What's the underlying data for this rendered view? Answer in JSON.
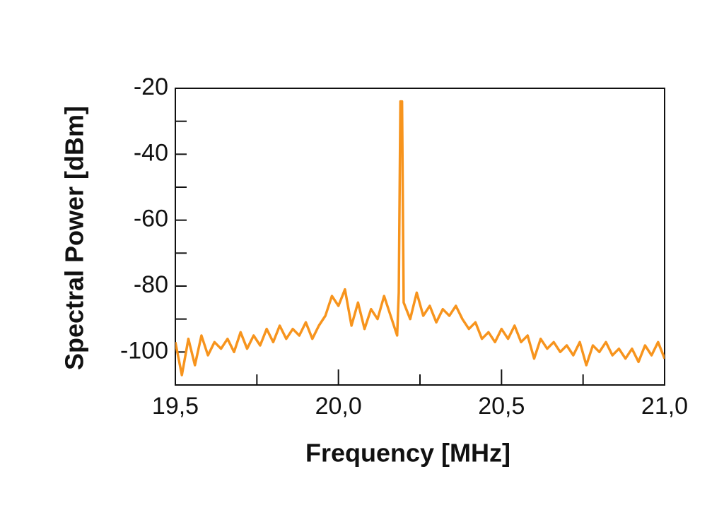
{
  "chart_data": {
    "type": "line",
    "xlabel": "Frequency [MHz]",
    "ylabel": "Spectral Power [dBm]",
    "xlim": [
      19.5,
      21.0
    ],
    "ylim": [
      -110,
      -20
    ],
    "xticks": [
      {
        "value": 19.5,
        "label": "19,5"
      },
      {
        "value": 20.0,
        "label": "20,0"
      },
      {
        "value": 20.5,
        "label": "20,5"
      },
      {
        "value": 21.0,
        "label": "21,0"
      }
    ],
    "xticks_minor": [
      19.75,
      20.25,
      20.75
    ],
    "yticks": [
      -20,
      -40,
      -60,
      -80,
      -100
    ],
    "yticks_minor": [
      -30,
      -50,
      -70,
      -90
    ],
    "x": [
      19.5,
      19.52,
      19.54,
      19.56,
      19.58,
      19.6,
      19.62,
      19.64,
      19.66,
      19.68,
      19.7,
      19.72,
      19.74,
      19.76,
      19.78,
      19.8,
      19.82,
      19.84,
      19.86,
      19.88,
      19.9,
      19.92,
      19.94,
      19.96,
      19.98,
      20.0,
      20.02,
      20.04,
      20.06,
      20.08,
      20.1,
      20.12,
      20.14,
      20.16,
      20.18,
      20.185,
      20.19,
      20.195,
      20.2,
      20.22,
      20.24,
      20.26,
      20.28,
      20.3,
      20.32,
      20.34,
      20.36,
      20.38,
      20.4,
      20.42,
      20.44,
      20.46,
      20.48,
      20.5,
      20.52,
      20.54,
      20.56,
      20.58,
      20.6,
      20.62,
      20.64,
      20.66,
      20.68,
      20.7,
      20.72,
      20.74,
      20.76,
      20.78,
      20.8,
      20.82,
      20.84,
      20.86,
      20.88,
      20.9,
      20.92,
      20.94,
      20.96,
      20.98,
      21.0
    ],
    "series": [
      {
        "color": "#f7941d",
        "values": [
          -97,
          -107,
          -96,
          -104,
          -95,
          -101,
          -97,
          -99,
          -96,
          -100,
          -94,
          -99,
          -95,
          -98,
          -93,
          -97,
          -92,
          -96,
          -93,
          -95,
          -91,
          -96,
          -92,
          -89,
          -83,
          -86,
          -81,
          -92,
          -85,
          -93,
          -87,
          -90,
          -83,
          -89,
          -95,
          -82,
          -24,
          -24,
          -85,
          -90,
          -82,
          -89,
          -86,
          -91,
          -87,
          -89,
          -86,
          -90,
          -93,
          -91,
          -96,
          -94,
          -97,
          -93,
          -96,
          -92,
          -97,
          -95,
          -102,
          -96,
          -99,
          -97,
          -100,
          -98,
          -101,
          -97,
          -104,
          -98,
          -100,
          -97,
          -101,
          -99,
          -102,
          -99,
          -103,
          -98,
          -101,
          -97,
          -102
        ]
      }
    ]
  }
}
